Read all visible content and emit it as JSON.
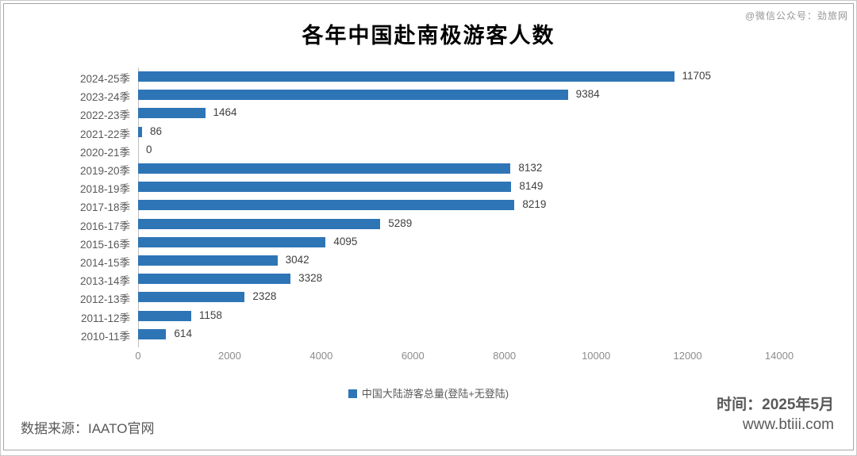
{
  "title": "各年中国赴南极游客人数",
  "watermark": "@微信公众号：劲旅网",
  "legend_label": "中国大陆游客总量(登陆+无登陆)",
  "footer": {
    "source": "数据来源：IAATO官网",
    "time": "时间：2025年5月",
    "site": "www.btiii.com"
  },
  "colors": {
    "bar": "#2e75b6",
    "axis_line": "#bfbfbf",
    "value_label": "#404040",
    "category_label": "#595959",
    "tick_label": "#8c8c8c"
  },
  "chart_data": {
    "type": "bar",
    "orientation": "horizontal",
    "title": "各年中国赴南极游客人数",
    "categories": [
      "2024-25季",
      "2023-24季",
      "2022-23季",
      "2021-22季",
      "2020-21季",
      "2019-20季",
      "2018-19季",
      "2017-18季",
      "2016-17季",
      "2015-16季",
      "2014-15季",
      "2013-14季",
      "2012-13季",
      "2011-12季",
      "2010-11季"
    ],
    "values": [
      11705,
      9384,
      1464,
      86,
      0,
      8132,
      8149,
      8219,
      5289,
      4095,
      3042,
      3328,
      2328,
      1158,
      614
    ],
    "series_name": "中国大陆游客总量(登陆+无登陆)",
    "xlabel": "",
    "ylabel": "",
    "xlim": [
      0,
      14000
    ],
    "x_ticks": [
      0,
      2000,
      4000,
      6000,
      8000,
      10000,
      12000,
      14000
    ],
    "grid": false,
    "data_labels": true,
    "legend_position": "bottom"
  }
}
